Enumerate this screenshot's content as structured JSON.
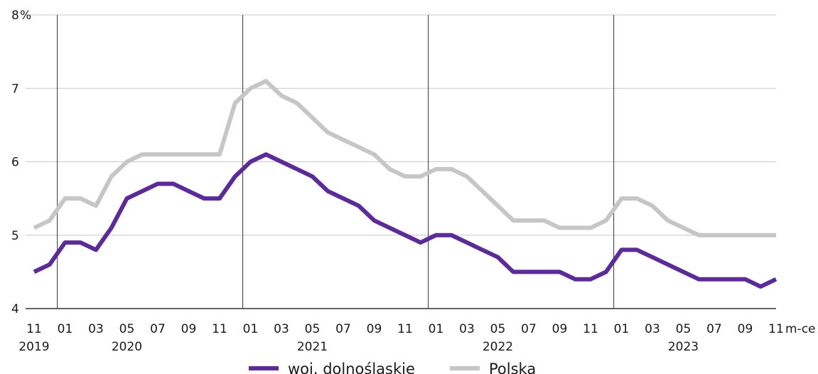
{
  "chart_data": {
    "type": "line",
    "ylabel": "%",
    "xlabel": "m-ce",
    "ylim": [
      4,
      8
    ],
    "yticks": [
      4,
      5,
      6,
      7,
      8
    ],
    "grid": true,
    "legend_position": "bottom",
    "x_tick_labels": [
      "11",
      "01",
      "03",
      "05",
      "07",
      "09",
      "11",
      "01",
      "03",
      "05",
      "07",
      "09",
      "11",
      "01",
      "03",
      "05",
      "07",
      "09",
      "11",
      "01",
      "03",
      "05",
      "07",
      "09",
      "11"
    ],
    "years": [
      "2019",
      "2020",
      "2021",
      "2022",
      "2023"
    ],
    "series": [
      {
        "name": "woj. dolnośląskie",
        "color": "#5b2c98",
        "values": [
          4.5,
          4.6,
          4.9,
          4.9,
          4.8,
          5.1,
          5.5,
          5.6,
          5.7,
          5.7,
          5.6,
          5.5,
          5.5,
          5.8,
          6.0,
          6.1,
          6.0,
          5.9,
          5.8,
          5.6,
          5.5,
          5.4,
          5.2,
          5.1,
          5.0,
          4.9,
          5.0,
          5.0,
          4.9,
          4.8,
          4.7,
          4.5,
          4.5,
          4.5,
          4.5,
          4.4,
          4.4,
          4.5,
          4.8,
          4.8,
          4.7,
          4.6,
          4.5,
          4.4,
          4.4,
          4.4,
          4.4,
          4.3,
          4.4
        ]
      },
      {
        "name": "Polska",
        "color": "#c6c6c6",
        "values": [
          5.1,
          5.2,
          5.5,
          5.5,
          5.4,
          5.8,
          6.0,
          6.1,
          6.1,
          6.1,
          6.1,
          6.1,
          6.1,
          6.8,
          7.0,
          7.1,
          6.9,
          6.8,
          6.6,
          6.4,
          6.3,
          6.2,
          6.1,
          5.9,
          5.8,
          5.8,
          5.9,
          5.9,
          5.8,
          5.6,
          5.4,
          5.2,
          5.2,
          5.2,
          5.1,
          5.1,
          5.1,
          5.2,
          5.5,
          5.5,
          5.4,
          5.2,
          5.1,
          5.0,
          5.0,
          5.0,
          5.0,
          5.0,
          5.0
        ]
      }
    ]
  }
}
